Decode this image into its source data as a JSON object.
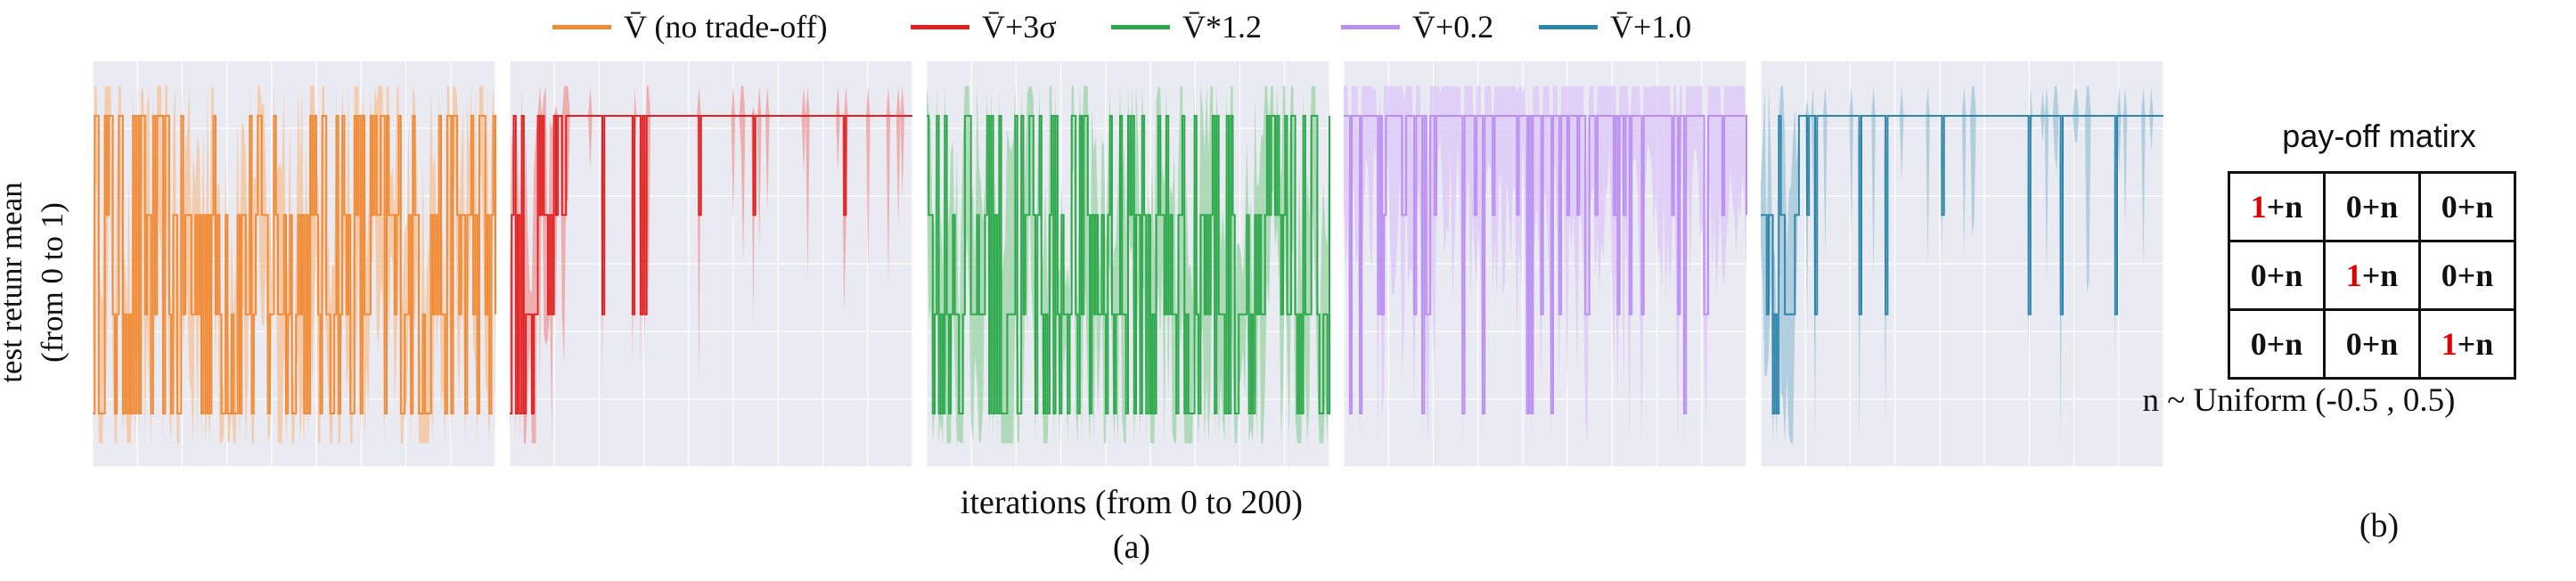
{
  "chart_data": {
    "type": "line",
    "xlabel": "iterations (from 0 to 200)",
    "ylabel_lines": [
      "test retunr mean",
      "(from 0 to 1)"
    ],
    "xlim": [
      0,
      200
    ],
    "ylim": [
      0,
      1
    ],
    "panel_caption": "(a)",
    "grid": true,
    "legend_position": "top-center",
    "series": [
      {
        "name": "V̄ (no trade-off)",
        "color": "#f08a35",
        "fill": "#f5c295",
        "pattern": "oscillating",
        "levels": [
          0.0,
          1.0
        ],
        "shaded_band": [
          0.0,
          1.0
        ]
      },
      {
        "name": "V̄+3σ",
        "color": "#e02020",
        "fill": "#ee9a9a",
        "pattern": "converges",
        "levels": [
          0.0,
          1.0
        ],
        "shaded_band": [
          0.0,
          1.0
        ]
      },
      {
        "name": "V̄*1.2",
        "color": "#2aa84a",
        "fill": "#9ad4a6",
        "pattern": "oscillating",
        "levels": [
          0.0,
          1.0
        ],
        "shaded_band": [
          0.0,
          1.0
        ]
      },
      {
        "name": "V̄+0.2",
        "color": "#bb8ef2",
        "fill": "#dcc5f7",
        "pattern": "mostly-converged",
        "levels": [
          0.0,
          1.0
        ],
        "shaded_band": [
          0.0,
          1.0
        ]
      },
      {
        "name": "V̄+1.0",
        "color": "#2e86ab",
        "fill": "#9ec4d8",
        "pattern": "converges",
        "levels": [
          0.0,
          1.0
        ],
        "shaded_band": [
          0.0,
          1.0
        ]
      }
    ]
  },
  "payoff": {
    "title": "pay-off matirx",
    "rows": [
      [
        {
          "lead": "1",
          "red": true,
          "rest": "+n"
        },
        {
          "lead": "0",
          "red": false,
          "rest": "+n"
        },
        {
          "lead": "0",
          "red": false,
          "rest": "+n"
        }
      ],
      [
        {
          "lead": "0",
          "red": false,
          "rest": "+n"
        },
        {
          "lead": "1",
          "red": true,
          "rest": "+n"
        },
        {
          "lead": "0",
          "red": false,
          "rest": "+n"
        }
      ],
      [
        {
          "lead": "0",
          "red": false,
          "rest": "+n"
        },
        {
          "lead": "0",
          "red": false,
          "rest": "+n"
        },
        {
          "lead": "1",
          "red": true,
          "rest": "+n"
        }
      ]
    ],
    "noise": "n ~ Uniform (-0.5 , 0.5)",
    "caption": "(b)"
  }
}
